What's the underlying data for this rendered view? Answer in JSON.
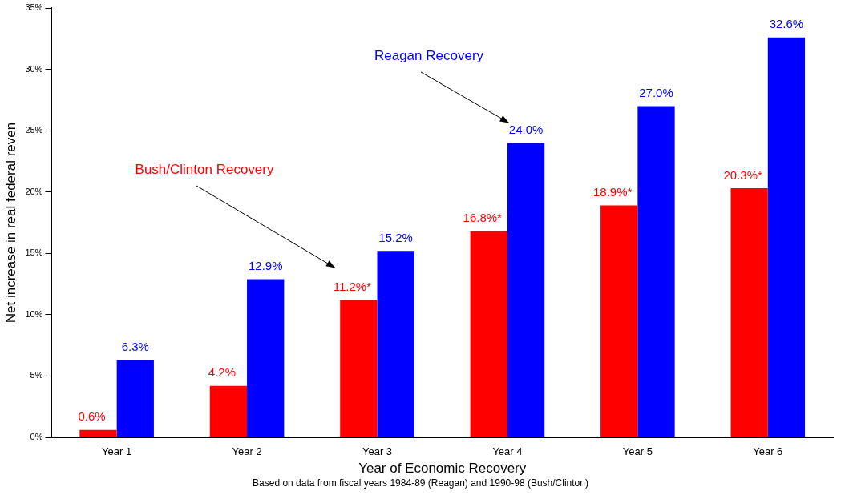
{
  "chart_data": {
    "type": "bar",
    "xlabel": "Year of Economic Recovery",
    "ylabel": "Net increase in real federal reven",
    "categories": [
      "Year 1",
      "Year 2",
      "Year 3",
      "Year 4",
      "Year 5",
      "Year 6"
    ],
    "series": [
      {
        "name": "Bush/Clinton Recovery",
        "color": "#ff0000",
        "values": [
          0.6,
          4.2,
          11.2,
          16.8,
          18.9,
          20.3
        ],
        "value_labels": [
          "0.6%",
          "4.2%",
          "11.2%*",
          "16.8%*",
          "18.9%*",
          "20.3%*"
        ]
      },
      {
        "name": "Reagan Recovery",
        "color": "#0000ff",
        "values": [
          6.3,
          12.9,
          15.2,
          24.0,
          27.0,
          32.6
        ],
        "value_labels": [
          "6.3%",
          "12.9%",
          "15.2%",
          "24.0%",
          "27.0%",
          "32.6%"
        ]
      }
    ],
    "ylim": [
      0,
      35
    ],
    "yticks": [
      {
        "value": 0,
        "label": "0%"
      },
      {
        "value": 5,
        "label": "5%"
      },
      {
        "value": 10,
        "label": "10%"
      },
      {
        "value": 15,
        "label": "15%"
      },
      {
        "value": 20,
        "label": "20%"
      },
      {
        "value": 25,
        "label": "25%"
      },
      {
        "value": 30,
        "label": "30%"
      },
      {
        "value": 35,
        "label": "35%"
      }
    ],
    "grid": false,
    "legend": false,
    "annotations": [
      "Based on data from fiscal years 1984-89 (Reagan) and 1990-98 (Bush/Clinton)"
    ]
  }
}
